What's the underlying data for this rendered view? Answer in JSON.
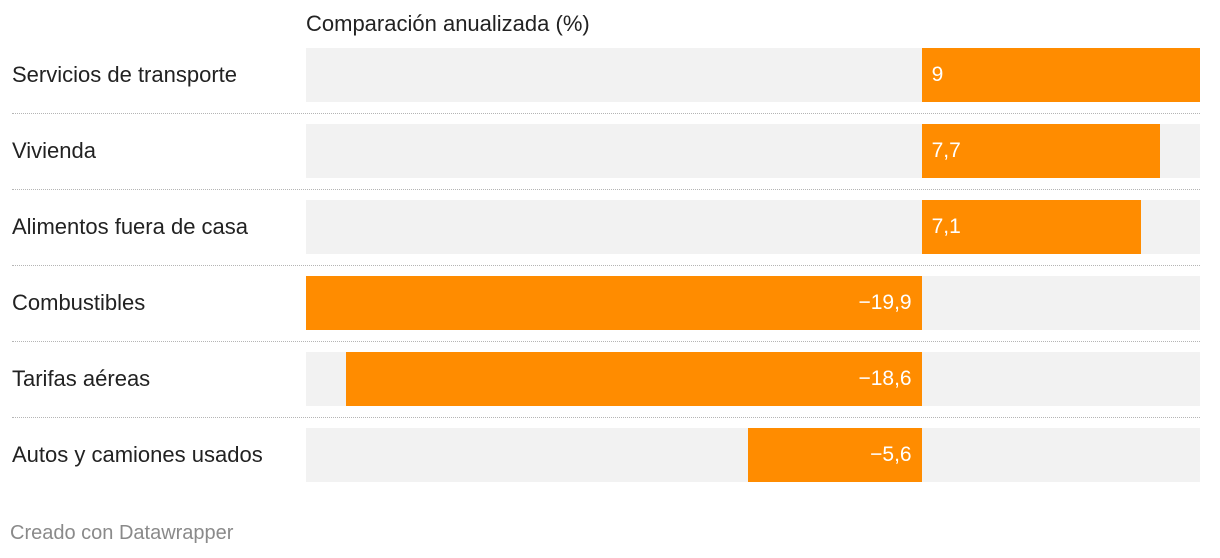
{
  "chart_data": {
    "type": "bar",
    "orientation": "horizontal",
    "title": "Comparación anualizada (%)",
    "categories": [
      "Servicios de transporte",
      "Vivienda",
      "Alimentos fuera de casa",
      "Combustibles",
      "Tarifas aéreas",
      "Autos y camiones usados"
    ],
    "values": [
      9,
      7.7,
      7.1,
      -19.9,
      -18.6,
      -5.6
    ],
    "value_labels": [
      "9",
      "7,7",
      "7,1",
      "−19,9",
      "−18,6",
      "−5,6"
    ],
    "xlim": [
      -19.9,
      9
    ],
    "grid": false,
    "bar_color": "#ff8c00",
    "track_color": "#f2f2f2"
  },
  "footer": {
    "credit": "Creado con Datawrapper"
  }
}
